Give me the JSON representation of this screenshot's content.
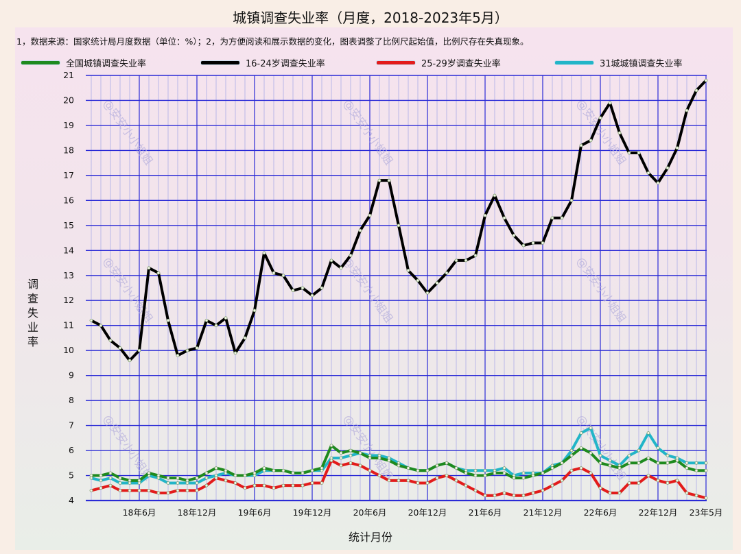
{
  "title": "城镇调查失业率（月度，2018-2023年5月）",
  "note": "1，数据来源：国家统计局月度数据（单位：%）；2，为方便阅读和展示数据的变化，图表调整了比例尺起始值，比例尺存在失真现象。",
  "watermark": "@安安小小姐姐",
  "colors": {
    "national": "#1e8a1e",
    "youth16_24": "#000000",
    "age25_29": "#e31b1b",
    "city31": "#22b5c8",
    "grid": "#2a2ad6",
    "minor_grid": "#b9b7e8"
  },
  "chart_data": {
    "type": "line",
    "title": "城镇调查失业率（月度，2018-2023年5月）",
    "xlabel": "统计月份",
    "ylabel": "调查失业率",
    "ylim": [
      4,
      21
    ],
    "yticks": [
      4,
      5,
      6,
      7,
      8,
      9,
      10,
      11,
      12,
      13,
      14,
      15,
      16,
      17,
      18,
      19,
      20,
      21
    ],
    "xtick_labels": [
      "18年6月",
      "18年12月",
      "19年6月",
      "19年12月",
      "20年6月",
      "20年12月",
      "21年6月",
      "21年12月",
      "22年6月",
      "22年12月",
      "23年5月"
    ],
    "xtick_index": [
      5,
      11,
      17,
      23,
      29,
      35,
      41,
      47,
      53,
      59,
      64
    ],
    "legend_position": "top",
    "grid": true,
    "x": [
      "2018-01",
      "2018-02",
      "2018-03",
      "2018-04",
      "2018-05",
      "2018-06",
      "2018-07",
      "2018-08",
      "2018-09",
      "2018-10",
      "2018-11",
      "2018-12",
      "2019-01",
      "2019-02",
      "2019-03",
      "2019-04",
      "2019-05",
      "2019-06",
      "2019-07",
      "2019-08",
      "2019-09",
      "2019-10",
      "2019-11",
      "2019-12",
      "2020-01",
      "2020-02",
      "2020-03",
      "2020-04",
      "2020-05",
      "2020-06",
      "2020-07",
      "2020-08",
      "2020-09",
      "2020-10",
      "2020-11",
      "2020-12",
      "2021-01",
      "2021-02",
      "2021-03",
      "2021-04",
      "2021-05",
      "2021-06",
      "2021-07",
      "2021-08",
      "2021-09",
      "2021-10",
      "2021-11",
      "2021-12",
      "2022-01",
      "2022-02",
      "2022-03",
      "2022-04",
      "2022-05",
      "2022-06",
      "2022-07",
      "2022-08",
      "2022-09",
      "2022-10",
      "2022-11",
      "2022-12",
      "2023-01",
      "2023-02",
      "2023-03",
      "2023-04",
      "2023-05"
    ],
    "series": [
      {
        "name": "全国城镇调查失业率",
        "color": "#1e8a1e",
        "values": [
          5.0,
          5.0,
          5.1,
          4.9,
          4.8,
          4.8,
          5.1,
          5.0,
          4.9,
          4.9,
          4.8,
          4.9,
          5.1,
          5.3,
          5.2,
          5.0,
          5.0,
          5.1,
          5.3,
          5.2,
          5.2,
          5.1,
          5.1,
          5.2,
          5.3,
          6.2,
          5.9,
          6.0,
          5.9,
          5.7,
          5.7,
          5.6,
          5.4,
          5.3,
          5.2,
          5.2,
          5.4,
          5.5,
          5.3,
          5.1,
          5.0,
          5.0,
          5.1,
          5.1,
          4.9,
          4.9,
          5.0,
          5.1,
          5.3,
          5.5,
          5.8,
          6.1,
          5.9,
          5.5,
          5.4,
          5.3,
          5.5,
          5.5,
          5.7,
          5.5,
          5.5,
          5.6,
          5.3,
          5.2,
          5.2
        ]
      },
      {
        "name": "16-24岁调查失业率",
        "color": "#000000",
        "values": [
          11.2,
          11.0,
          10.4,
          10.1,
          9.6,
          10.0,
          13.3,
          13.1,
          11.2,
          9.8,
          10.0,
          10.1,
          11.2,
          11.0,
          11.3,
          9.9,
          10.5,
          11.6,
          13.9,
          13.1,
          13.0,
          12.4,
          12.5,
          12.2,
          12.5,
          13.6,
          13.3,
          13.8,
          14.8,
          15.4,
          16.8,
          16.8,
          15.0,
          13.2,
          12.8,
          12.3,
          12.7,
          13.1,
          13.6,
          13.6,
          13.8,
          15.4,
          16.2,
          15.3,
          14.6,
          14.2,
          14.3,
          14.3,
          15.3,
          15.3,
          16.0,
          18.2,
          18.4,
          19.3,
          19.9,
          18.7,
          17.9,
          17.9,
          17.1,
          16.7,
          17.3,
          18.1,
          19.6,
          20.4,
          20.8
        ]
      },
      {
        "name": "25-29岁调查失业率",
        "color": "#e31b1b",
        "values": [
          4.4,
          4.5,
          4.6,
          4.4,
          4.4,
          4.4,
          4.4,
          4.3,
          4.3,
          4.4,
          4.4,
          4.4,
          4.6,
          4.9,
          4.8,
          4.7,
          4.5,
          4.6,
          4.6,
          4.5,
          4.6,
          4.6,
          4.6,
          4.7,
          4.7,
          5.6,
          5.4,
          5.5,
          5.4,
          5.2,
          5.0,
          4.8,
          4.8,
          4.8,
          4.7,
          4.7,
          4.9,
          5.0,
          4.8,
          4.6,
          4.4,
          4.2,
          4.2,
          4.3,
          4.2,
          4.2,
          4.3,
          4.4,
          4.6,
          4.8,
          5.2,
          5.3,
          5.1,
          4.5,
          4.3,
          4.3,
          4.7,
          4.7,
          5.0,
          4.8,
          4.7,
          4.8,
          4.3,
          4.2,
          4.1
        ]
      },
      {
        "name": "31城城镇调查失业率",
        "color": "#22b5c8",
        "values": [
          4.9,
          4.8,
          4.9,
          4.7,
          4.7,
          4.7,
          5.0,
          4.9,
          4.7,
          4.7,
          4.7,
          4.7,
          4.9,
          5.0,
          5.1,
          5.0,
          5.0,
          5.0,
          5.2,
          5.2,
          5.2,
          5.1,
          5.1,
          5.2,
          5.2,
          5.7,
          5.7,
          5.8,
          5.9,
          5.8,
          5.8,
          5.7,
          5.5,
          5.3,
          5.2,
          5.2,
          5.4,
          5.5,
          5.3,
          5.2,
          5.2,
          5.2,
          5.2,
          5.3,
          5.0,
          5.1,
          5.1,
          5.1,
          5.4,
          5.5,
          6.0,
          6.7,
          6.9,
          5.8,
          5.6,
          5.4,
          5.8,
          6.0,
          6.7,
          6.1,
          5.8,
          5.7,
          5.5,
          5.5,
          5.5
        ]
      }
    ]
  }
}
